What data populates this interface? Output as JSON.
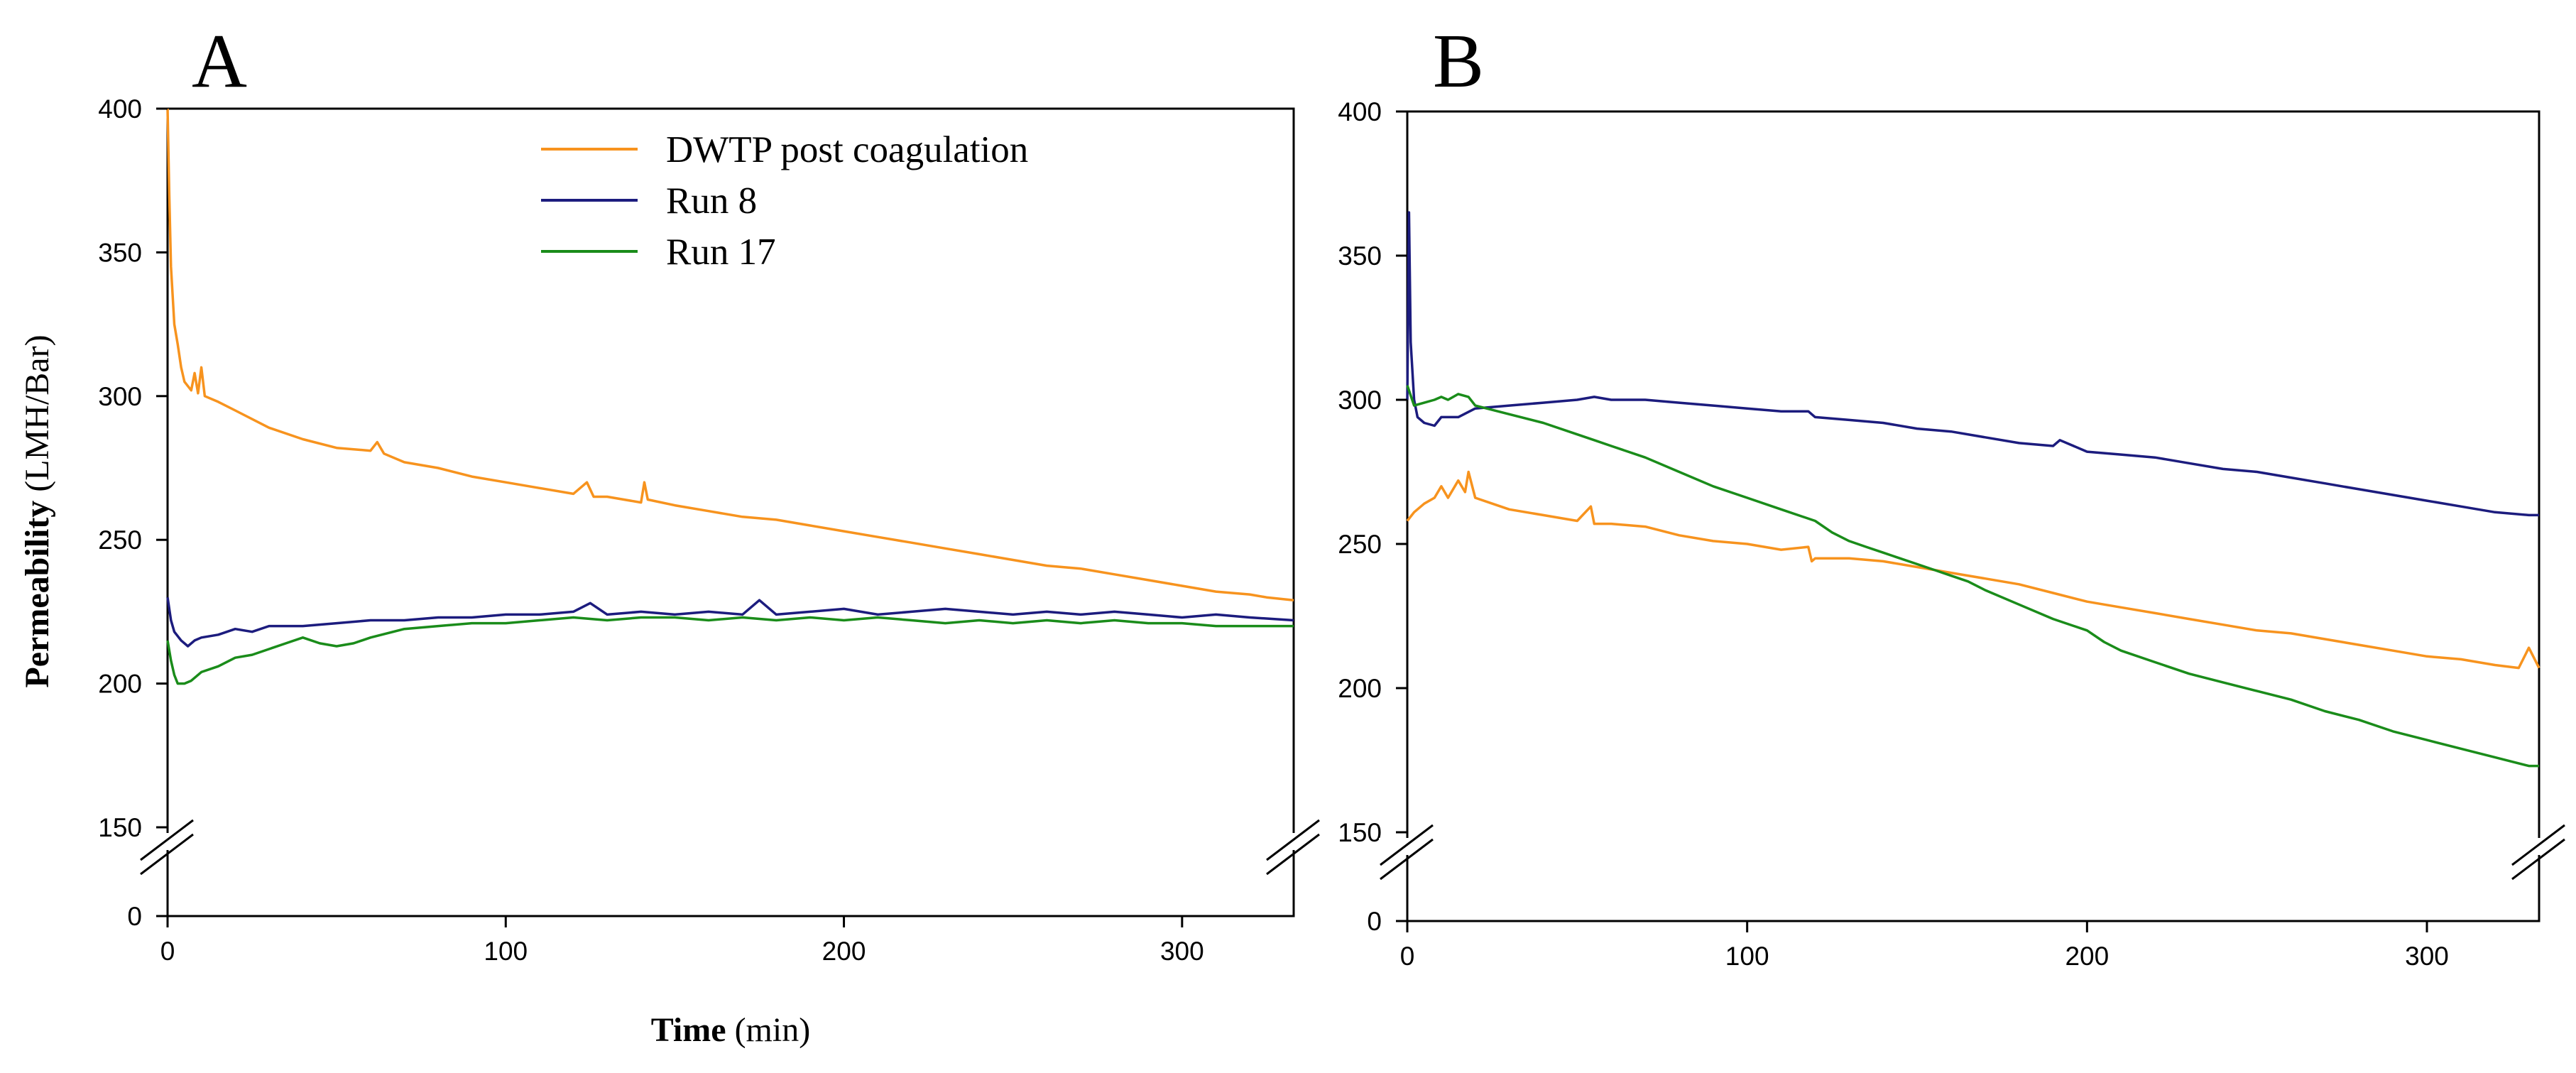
{
  "colors": {
    "dwtp": "#f7931e",
    "run8": "#1c1c7e",
    "run17": "#1a8c1a"
  },
  "chart_data": [
    {
      "type": "line",
      "panel": "A",
      "title": "",
      "xlabel_bold": "Time",
      "xlabel_rest": " (min)",
      "ylabel_bold": "Permeability",
      "ylabel_rest": " (LMH/Bar)",
      "xlim": [
        0,
        333
      ],
      "ylim": [
        150,
        400
      ],
      "axis_break": {
        "low": 0,
        "high": 150
      },
      "x_ticks": [
        0,
        100,
        200,
        300
      ],
      "y_ticks": [
        150,
        200,
        250,
        300,
        350,
        400
      ],
      "y_zero_label": "0",
      "legend": {
        "placement": "top-center",
        "entries": [
          "DWTP post coagulation",
          "Run 8",
          "Run 17"
        ]
      },
      "series": [
        {
          "name": "DWTP post coagulation",
          "color_key": "dwtp",
          "x": [
            0,
            0.5,
            1,
            2,
            3,
            4,
            5,
            7,
            8,
            9,
            10,
            11,
            15,
            20,
            30,
            40,
            50,
            60,
            62,
            64,
            70,
            80,
            90,
            100,
            110,
            120,
            124,
            126,
            130,
            140,
            141,
            142,
            150,
            160,
            170,
            180,
            190,
            200,
            210,
            220,
            230,
            240,
            250,
            260,
            270,
            280,
            290,
            300,
            310,
            320,
            325,
            333
          ],
          "y": [
            400,
            370,
            345,
            325,
            318,
            310,
            305,
            302,
            308,
            301,
            310,
            300,
            298,
            295,
            289,
            285,
            282,
            281,
            284,
            280,
            277,
            275,
            272,
            270,
            268,
            266,
            270,
            265,
            265,
            263,
            270,
            264,
            262,
            260,
            258,
            257,
            255,
            253,
            251,
            249,
            247,
            245,
            243,
            241,
            240,
            238,
            236,
            234,
            232,
            231,
            230,
            229
          ]
        },
        {
          "name": "Run 8",
          "color_key": "run8",
          "x": [
            0,
            1,
            2,
            4,
            6,
            8,
            10,
            15,
            20,
            25,
            30,
            40,
            50,
            60,
            70,
            80,
            90,
            100,
            110,
            120,
            125,
            130,
            140,
            150,
            160,
            170,
            175,
            180,
            190,
            200,
            210,
            220,
            230,
            240,
            250,
            260,
            270,
            280,
            290,
            300,
            310,
            320,
            333
          ],
          "y": [
            230,
            222,
            218,
            215,
            213,
            215,
            216,
            217,
            219,
            218,
            220,
            220,
            221,
            222,
            222,
            223,
            223,
            224,
            224,
            225,
            228,
            224,
            225,
            224,
            225,
            224,
            229,
            224,
            225,
            226,
            224,
            225,
            226,
            225,
            224,
            225,
            224,
            225,
            224,
            223,
            224,
            223,
            222
          ]
        },
        {
          "name": "Run 17",
          "color_key": "run17",
          "x": [
            0,
            1,
            2,
            3,
            5,
            7,
            10,
            15,
            20,
            25,
            30,
            35,
            40,
            45,
            50,
            55,
            60,
            70,
            80,
            90,
            100,
            110,
            120,
            130,
            140,
            150,
            160,
            170,
            180,
            190,
            200,
            210,
            220,
            230,
            240,
            250,
            260,
            270,
            280,
            290,
            300,
            310,
            320,
            333
          ],
          "y": [
            215,
            208,
            203,
            200,
            200,
            201,
            204,
            206,
            209,
            210,
            212,
            214,
            216,
            214,
            213,
            214,
            216,
            219,
            220,
            221,
            221,
            222,
            223,
            222,
            223,
            223,
            222,
            223,
            222,
            223,
            222,
            223,
            222,
            221,
            222,
            221,
            222,
            221,
            222,
            221,
            221,
            220,
            220,
            220
          ]
        }
      ]
    },
    {
      "type": "line",
      "panel": "B",
      "title": "",
      "xlabel": "",
      "ylabel": "",
      "xlim": [
        0,
        333
      ],
      "ylim": [
        150,
        400
      ],
      "axis_break": {
        "low": 0,
        "high": 150
      },
      "x_ticks": [
        0,
        100,
        200,
        300
      ],
      "y_ticks": [
        150,
        200,
        250,
        300,
        350,
        400
      ],
      "y_zero_label": "0",
      "series": [
        {
          "name": "DWTP post coagulation",
          "color_key": "dwtp",
          "x": [
            0,
            2,
            5,
            8,
            10,
            12,
            15,
            17,
            18,
            20,
            25,
            30,
            40,
            50,
            54,
            55,
            60,
            70,
            80,
            90,
            100,
            110,
            118,
            119,
            120,
            130,
            140,
            150,
            160,
            170,
            180,
            190,
            200,
            210,
            220,
            230,
            240,
            250,
            260,
            270,
            280,
            290,
            300,
            310,
            320,
            327,
            330,
            333
          ],
          "y": [
            258,
            261,
            264,
            266,
            270,
            266,
            272,
            268,
            275,
            266,
            264,
            262,
            260,
            258,
            263,
            257,
            257,
            256,
            253,
            251,
            250,
            248,
            249,
            244,
            245,
            245,
            244,
            242,
            240,
            238,
            236,
            233,
            230,
            228,
            226,
            224,
            222,
            220,
            219,
            217,
            215,
            213,
            211,
            210,
            208,
            207,
            214,
            207
          ]
        },
        {
          "name": "Run 8",
          "color_key": "run8",
          "x": [
            0,
            0.5,
            1,
            2,
            3,
            5,
            8,
            10,
            15,
            20,
            30,
            40,
            50,
            55,
            60,
            70,
            80,
            90,
            100,
            110,
            118,
            120,
            130,
            140,
            150,
            160,
            170,
            180,
            190,
            192,
            200,
            210,
            220,
            230,
            240,
            250,
            260,
            270,
            280,
            290,
            300,
            310,
            320,
            330,
            333
          ],
          "y": [
            300,
            365,
            320,
            300,
            294,
            292,
            291,
            294,
            294,
            297,
            298,
            299,
            300,
            301,
            300,
            300,
            299,
            298,
            297,
            296,
            296,
            294,
            293,
            292,
            290,
            289,
            287,
            285,
            284,
            286,
            282,
            281,
            280,
            278,
            276,
            275,
            273,
            271,
            269,
            267,
            265,
            263,
            261,
            260,
            260
          ]
        },
        {
          "name": "Run 17",
          "color_key": "run17",
          "x": [
            0,
            2,
            5,
            8,
            10,
            12,
            15,
            18,
            20,
            30,
            40,
            50,
            55,
            60,
            70,
            80,
            90,
            100,
            110,
            120,
            125,
            130,
            135,
            140,
            145,
            150,
            155,
            160,
            165,
            170,
            180,
            190,
            200,
            205,
            210,
            220,
            230,
            240,
            250,
            260,
            270,
            280,
            290,
            300,
            310,
            320,
            330,
            333
          ],
          "y": [
            305,
            298,
            299,
            300,
            301,
            300,
            302,
            301,
            298,
            295,
            292,
            288,
            286,
            284,
            280,
            275,
            270,
            266,
            262,
            258,
            254,
            251,
            249,
            247,
            245,
            243,
            241,
            239,
            237,
            234,
            229,
            224,
            220,
            216,
            213,
            209,
            205,
            202,
            199,
            196,
            192,
            189,
            185,
            182,
            179,
            176,
            173,
            173
          ]
        }
      ]
    }
  ]
}
